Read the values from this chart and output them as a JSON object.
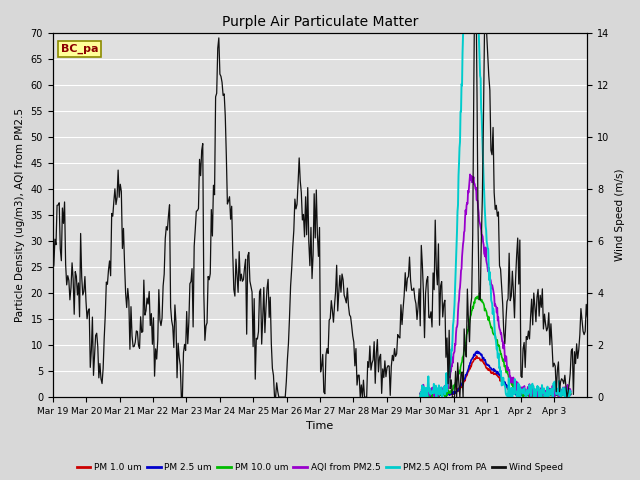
{
  "title": "Purple Air Particulate Matter",
  "ylabel_left": "Particle Density (ug/m3), AQI from PM2.5",
  "ylabel_right": "Wind Speed (m/s)",
  "xlabel": "Time",
  "label_text": "BC_pa",
  "ylim_left": [
    0,
    70
  ],
  "ylim_right": [
    0,
    14
  ],
  "yticks_left": [
    0,
    5,
    10,
    15,
    20,
    25,
    30,
    35,
    40,
    45,
    50,
    55,
    60,
    65,
    70
  ],
  "yticks_right": [
    0,
    2,
    4,
    6,
    8,
    10,
    12,
    14
  ],
  "xtick_labels": [
    "Mar 19",
    "Mar 20",
    "Mar 21",
    "Mar 22",
    "Mar 23",
    "Mar 24",
    "Mar 25",
    "Mar 26",
    "Mar 27",
    "Mar 28",
    "Mar 29",
    "Mar 30",
    "Mar 31",
    "Apr 1",
    "Apr 2",
    "Apr 3"
  ],
  "n_xticks": 16,
  "background_color": "#d8d8d8",
  "plot_bg_color": "#e0e0e0",
  "grid_color": "#ffffff",
  "wind_color": "#111111",
  "pm1_color": "#cc0000",
  "pm25_color": "#0000cc",
  "pm10_color": "#00bb00",
  "aqi_color": "#9900cc",
  "aqi_pa_color": "#00cccc",
  "legend_items": [
    {
      "label": "PM 1.0 um",
      "color": "#cc0000"
    },
    {
      "label": "PM 2.5 um",
      "color": "#0000cc"
    },
    {
      "label": "PM 10.0 um",
      "color": "#00bb00"
    },
    {
      "label": "AQI from PM2.5",
      "color": "#9900cc"
    },
    {
      "label": "PM2.5 AQI from PA",
      "color": "#00cccc"
    },
    {
      "label": "Wind Speed",
      "color": "#111111"
    }
  ],
  "figsize": [
    6.4,
    4.8
  ],
  "dpi": 100
}
